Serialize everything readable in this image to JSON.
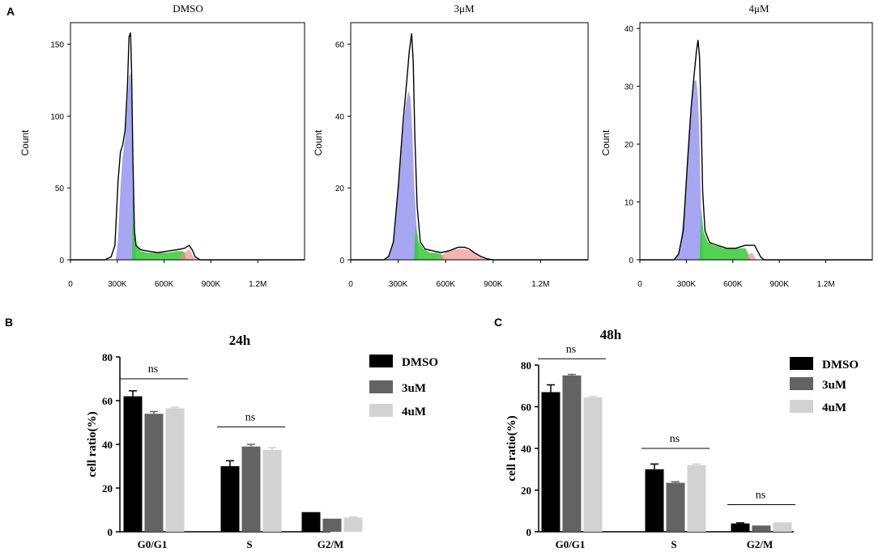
{
  "panels": {
    "a": "A",
    "b": "B",
    "c": "C"
  },
  "histogram_charts": [
    {
      "title": "DMSO",
      "ylabel": "Count",
      "ymax": 165,
      "xmax": 1500,
      "yticks": [
        "0",
        "50",
        "100",
        "150"
      ],
      "ytick_values": [
        0,
        50,
        100,
        150
      ],
      "xticks": [
        "0",
        "300K",
        "600K",
        "900K",
        "1.2M"
      ],
      "xtick_values": [
        0,
        300,
        600,
        900,
        1200
      ],
      "outline": [
        [
          0,
          0
        ],
        [
          220,
          0
        ],
        [
          260,
          2
        ],
        [
          285,
          10
        ],
        [
          305,
          55
        ],
        [
          320,
          75
        ],
        [
          335,
          80
        ],
        [
          350,
          90
        ],
        [
          365,
          120
        ],
        [
          375,
          155
        ],
        [
          385,
          158
        ],
        [
          392,
          130
        ],
        [
          400,
          70
        ],
        [
          410,
          20
        ],
        [
          420,
          10
        ],
        [
          450,
          7
        ],
        [
          500,
          6
        ],
        [
          560,
          5
        ],
        [
          620,
          6
        ],
        [
          680,
          7
        ],
        [
          730,
          8
        ],
        [
          760,
          10
        ],
        [
          780,
          7
        ],
        [
          800,
          2
        ],
        [
          830,
          0
        ],
        [
          1500,
          0
        ]
      ],
      "g1": [
        [
          290,
          0
        ],
        [
          305,
          15
        ],
        [
          320,
          50
        ],
        [
          335,
          72
        ],
        [
          350,
          85
        ],
        [
          365,
          110
        ],
        [
          375,
          128
        ],
        [
          385,
          130
        ],
        [
          392,
          115
        ],
        [
          400,
          70
        ],
        [
          410,
          20
        ],
        [
          420,
          0
        ]
      ],
      "s": [
        [
          395,
          0
        ],
        [
          400,
          50
        ],
        [
          410,
          22
        ],
        [
          425,
          10
        ],
        [
          450,
          6
        ],
        [
          500,
          5
        ],
        [
          560,
          5
        ],
        [
          620,
          5
        ],
        [
          680,
          6
        ],
        [
          720,
          6
        ],
        [
          735,
          4
        ],
        [
          740,
          0
        ]
      ],
      "g2": [
        [
          680,
          0
        ],
        [
          700,
          2
        ],
        [
          720,
          4
        ],
        [
          740,
          6
        ],
        [
          760,
          7
        ],
        [
          775,
          5
        ],
        [
          790,
          2
        ],
        [
          810,
          0
        ]
      ]
    },
    {
      "title": "3μM",
      "ylabel": "Count",
      "ymax": 66,
      "xmax": 1500,
      "yticks": [
        "0",
        "20",
        "40",
        "60"
      ],
      "ytick_values": [
        0,
        20,
        40,
        60
      ],
      "xticks": [
        "0",
        "300K",
        "600K",
        "900K",
        "1.2M"
      ],
      "xtick_values": [
        0,
        300,
        600,
        900,
        1200
      ],
      "outline": [
        [
          0,
          0
        ],
        [
          210,
          0
        ],
        [
          240,
          1
        ],
        [
          270,
          5
        ],
        [
          300,
          20
        ],
        [
          330,
          38
        ],
        [
          355,
          50
        ],
        [
          370,
          58
        ],
        [
          385,
          63
        ],
        [
          395,
          55
        ],
        [
          405,
          35
        ],
        [
          420,
          15
        ],
        [
          440,
          5
        ],
        [
          470,
          3
        ],
        [
          520,
          2.5
        ],
        [
          570,
          2
        ],
        [
          620,
          2.5
        ],
        [
          680,
          3.5
        ],
        [
          720,
          3.5
        ],
        [
          750,
          3
        ],
        [
          780,
          2
        ],
        [
          820,
          1
        ],
        [
          860,
          0.3
        ],
        [
          900,
          0
        ],
        [
          1500,
          0
        ]
      ],
      "g1": [
        [
          220,
          0
        ],
        [
          250,
          2
        ],
        [
          280,
          8
        ],
        [
          305,
          22
        ],
        [
          330,
          36
        ],
        [
          350,
          44
        ],
        [
          365,
          47
        ],
        [
          378,
          45
        ],
        [
          390,
          35
        ],
        [
          400,
          22
        ],
        [
          415,
          10
        ],
        [
          430,
          0
        ]
      ],
      "s": [
        [
          400,
          0
        ],
        [
          410,
          10
        ],
        [
          430,
          5
        ],
        [
          460,
          3
        ],
        [
          500,
          2
        ],
        [
          540,
          2
        ],
        [
          575,
          1.5
        ],
        [
          590,
          0
        ]
      ],
      "g2": [
        [
          540,
          0
        ],
        [
          570,
          1
        ],
        [
          610,
          2.5
        ],
        [
          660,
          3
        ],
        [
          710,
          3
        ],
        [
          760,
          2.5
        ],
        [
          810,
          1
        ],
        [
          860,
          0
        ]
      ]
    },
    {
      "title": "4μM",
      "ylabel": "Count",
      "ymax": 41,
      "xmax": 1500,
      "yticks": [
        "0",
        "10",
        "20",
        "30",
        "40"
      ],
      "ytick_values": [
        0,
        10,
        20,
        30,
        40
      ],
      "xticks": [
        "0",
        "300K",
        "600K",
        "900K",
        "1.2M"
      ],
      "xtick_values": [
        0,
        300,
        600,
        900,
        1200
      ],
      "outline": [
        [
          0,
          0
        ],
        [
          220,
          0
        ],
        [
          250,
          1
        ],
        [
          280,
          5
        ],
        [
          305,
          16
        ],
        [
          330,
          26
        ],
        [
          350,
          32
        ],
        [
          365,
          36
        ],
        [
          375,
          38
        ],
        [
          385,
          35
        ],
        [
          395,
          25
        ],
        [
          405,
          12
        ],
        [
          420,
          5
        ],
        [
          450,
          3
        ],
        [
          500,
          2.5
        ],
        [
          560,
          2
        ],
        [
          620,
          2
        ],
        [
          680,
          2.5
        ],
        [
          720,
          2.5
        ],
        [
          740,
          2.5
        ],
        [
          760,
          1.5
        ],
        [
          780,
          0.5
        ],
        [
          800,
          0
        ],
        [
          1500,
          0
        ]
      ],
      "g1": [
        [
          230,
          0
        ],
        [
          260,
          2
        ],
        [
          290,
          10
        ],
        [
          315,
          22
        ],
        [
          335,
          28
        ],
        [
          350,
          31
        ],
        [
          365,
          31
        ],
        [
          375,
          28
        ],
        [
          385,
          20
        ],
        [
          395,
          8
        ],
        [
          410,
          0
        ]
      ],
      "s": [
        [
          385,
          0
        ],
        [
          395,
          9
        ],
        [
          410,
          5
        ],
        [
          440,
          3
        ],
        [
          480,
          2.5
        ],
        [
          540,
          2
        ],
        [
          600,
          2
        ],
        [
          650,
          2
        ],
        [
          680,
          2
        ],
        [
          700,
          1
        ],
        [
          710,
          0
        ]
      ],
      "g2": [
        [
          680,
          0
        ],
        [
          700,
          0.8
        ],
        [
          720,
          1.3
        ],
        [
          735,
          0.8
        ],
        [
          750,
          0
        ]
      ]
    }
  ],
  "chart_data": [
    {
      "type": "bar",
      "title": "24h",
      "ylabel": "cell ratio(%)",
      "xlabel": "",
      "ylim": [
        0,
        80
      ],
      "yticks": [
        "0",
        "20",
        "40",
        "60",
        "80"
      ],
      "ytick_values": [
        0,
        20,
        40,
        60,
        80
      ],
      "categories": [
        "G0/G1",
        "S",
        "G2/M"
      ],
      "series": [
        {
          "name": "DMSO",
          "color": "#000000",
          "values": [
            62,
            30,
            9
          ],
          "errors": [
            2.5,
            2.5,
            0
          ]
        },
        {
          "name": "3uM",
          "color": "#636363",
          "values": [
            54,
            39,
            6
          ],
          "errors": [
            1,
            1,
            0
          ]
        },
        {
          "name": "4uM",
          "color": "#d2d2d2",
          "values": [
            56.5,
            37.5,
            6.5
          ],
          "errors": [
            0.5,
            1,
            0.3
          ]
        }
      ],
      "significance": [
        {
          "label": "ns",
          "category_index": 0,
          "y": 70
        },
        {
          "label": "ns",
          "category_index": 1,
          "y": 48
        }
      ]
    },
    {
      "type": "bar",
      "title": "48h",
      "ylabel": "cell ratio(%)",
      "xlabel": "",
      "ylim": [
        0,
        80
      ],
      "yticks": [
        "0",
        "20",
        "40",
        "60",
        "80"
      ],
      "ytick_values": [
        0,
        20,
        40,
        60,
        80
      ],
      "categories": [
        "G0/G1",
        "S",
        "G2/M"
      ],
      "series": [
        {
          "name": "DMSO",
          "color": "#000000",
          "values": [
            67,
            30,
            4
          ],
          "errors": [
            3.5,
            2.5,
            0.3
          ]
        },
        {
          "name": "3uM",
          "color": "#636363",
          "values": [
            75,
            23.5,
            3
          ],
          "errors": [
            0.5,
            0.5,
            0
          ]
        },
        {
          "name": "4uM",
          "color": "#d2d2d2",
          "values": [
            64.5,
            32,
            4.5
          ],
          "errors": [
            0.5,
            0.5,
            0
          ]
        }
      ],
      "significance": [
        {
          "label": "ns",
          "category_index": 0,
          "y": 83
        },
        {
          "label": "ns",
          "category_index": 1,
          "y": 40
        },
        {
          "label": "ns",
          "category_index": 2,
          "y": 13
        }
      ]
    }
  ],
  "colors": {
    "g1": "#8888ee",
    "s": "#33cc33",
    "g2": "#ee8888",
    "outline": "#000000"
  }
}
